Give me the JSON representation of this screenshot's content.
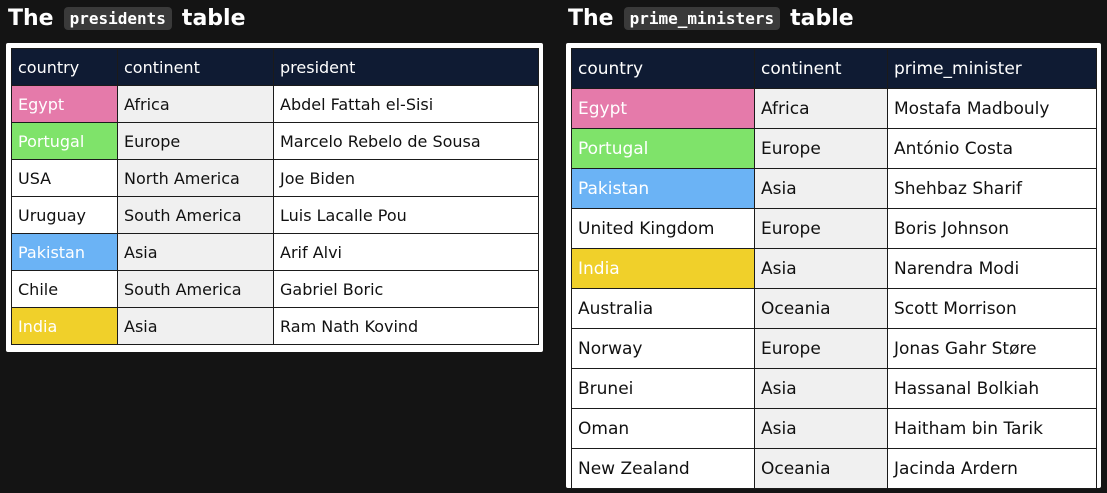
{
  "colors": {
    "background": "#141414",
    "header_bg": "#0f1b33",
    "Egypt": "#e57aaa",
    "Portugal": "#7fe36a",
    "Pakistan": "#6bb3f5",
    "India": "#f0d02a"
  },
  "presidents": {
    "title_prefix": "The",
    "table_name": "presidents",
    "title_suffix": "table",
    "headers": [
      "country",
      "continent",
      "president"
    ],
    "rows": [
      [
        "Egypt",
        "Africa",
        "Abdel Fattah el-Sisi"
      ],
      [
        "Portugal",
        "Europe",
        "Marcelo Rebelo de Sousa"
      ],
      [
        "USA",
        "North America",
        "Joe Biden"
      ],
      [
        "Uruguay",
        "South America",
        "Luis Lacalle Pou"
      ],
      [
        "Pakistan",
        "Asia",
        "Arif Alvi"
      ],
      [
        "Chile",
        "South America",
        "Gabriel Boric"
      ],
      [
        "India",
        "Asia",
        "Ram Nath Kovind"
      ]
    ]
  },
  "prime_ministers": {
    "title_prefix": "The",
    "table_name": "prime_ministers",
    "title_suffix": "table",
    "headers": [
      "country",
      "continent",
      "prime_minister"
    ],
    "rows": [
      [
        "Egypt",
        "Africa",
        "Mostafa Madbouly"
      ],
      [
        "Portugal",
        "Europe",
        "António Costa"
      ],
      [
        "Pakistan",
        "Asia",
        "Shehbaz Sharif"
      ],
      [
        "United Kingdom",
        "Europe",
        "Boris Johnson"
      ],
      [
        "India",
        "Asia",
        "Narendra Modi"
      ],
      [
        "Australia",
        "Oceania",
        "Scott Morrison"
      ],
      [
        "Norway",
        "Europe",
        "Jonas Gahr Støre"
      ],
      [
        "Brunei",
        "Asia",
        "Hassanal Bolkiah"
      ],
      [
        "Oman",
        "Asia",
        "Haitham bin Tarik"
      ],
      [
        "New Zealand",
        "Oceania",
        "Jacinda Ardern"
      ]
    ]
  }
}
